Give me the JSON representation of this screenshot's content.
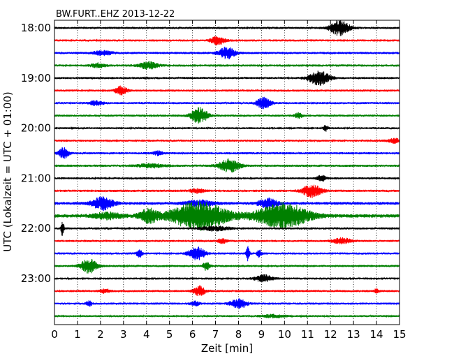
{
  "chart_data": {
    "type": "line",
    "title": "BW.FURT..EHZ 2013-12-22",
    "xlabel": "Zeit  [min]",
    "ylabel": "UTC (Lokalzeit = UTC + 01:00)",
    "xlim": [
      0,
      15
    ],
    "x_ticks": [
      "0",
      "1",
      "2",
      "3",
      "4",
      "5",
      "6",
      "7",
      "8",
      "9",
      "10",
      "11",
      "12",
      "13",
      "14",
      "15"
    ],
    "y_tick_labels": [
      "18:00",
      "19:00",
      "20:00",
      "21:00",
      "22:00",
      "23:00"
    ],
    "minutes_per_line": 15,
    "grid": "vertical dotted lines at each minute",
    "trace_colors": [
      "#000000",
      "#ff0000",
      "#0000ff",
      "#008000"
    ],
    "traces": [
      {
        "start": "18:00",
        "color": "#000000",
        "base_amp": 1.5,
        "events": [
          {
            "t": 12.4,
            "amp": 11,
            "width": 0.4
          }
        ]
      },
      {
        "start": "18:15",
        "color": "#ff0000",
        "base_amp": 1.5,
        "events": [
          {
            "t": 7.1,
            "amp": 6,
            "width": 0.3
          }
        ]
      },
      {
        "start": "18:30",
        "color": "#0000ff",
        "base_amp": 1.6,
        "events": [
          {
            "t": 7.5,
            "amp": 8,
            "width": 0.35
          },
          {
            "t": 2.1,
            "amp": 3,
            "width": 0.4
          }
        ]
      },
      {
        "start": "18:45",
        "color": "#008000",
        "base_amp": 1.6,
        "events": [
          {
            "t": 4.1,
            "amp": 5,
            "width": 0.4
          },
          {
            "t": 1.9,
            "amp": 3,
            "width": 0.3
          }
        ]
      },
      {
        "start": "19:00",
        "color": "#000000",
        "base_amp": 1.5,
        "events": [
          {
            "t": 11.5,
            "amp": 10,
            "width": 0.45
          }
        ]
      },
      {
        "start": "19:15",
        "color": "#ff0000",
        "base_amp": 1.5,
        "events": [
          {
            "t": 2.9,
            "amp": 6,
            "width": 0.25
          }
        ]
      },
      {
        "start": "19:30",
        "color": "#0000ff",
        "base_amp": 1.5,
        "events": [
          {
            "t": 9.1,
            "amp": 8,
            "width": 0.3
          },
          {
            "t": 1.8,
            "amp": 3,
            "width": 0.3
          }
        ]
      },
      {
        "start": "19:45",
        "color": "#008000",
        "base_amp": 1.5,
        "events": [
          {
            "t": 6.3,
            "amp": 11,
            "width": 0.35
          },
          {
            "t": 10.6,
            "amp": 4,
            "width": 0.15
          }
        ]
      },
      {
        "start": "20:00",
        "color": "#000000",
        "base_amp": 1.4,
        "events": [
          {
            "t": 11.8,
            "amp": 4,
            "width": 0.1
          }
        ]
      },
      {
        "start": "20:15",
        "color": "#ff0000",
        "base_amp": 1.4,
        "events": [
          {
            "t": 14.8,
            "amp": 3,
            "width": 0.3
          }
        ]
      },
      {
        "start": "20:30",
        "color": "#0000ff",
        "base_amp": 1.6,
        "events": [
          {
            "t": 0.4,
            "amp": 8,
            "width": 0.2
          },
          {
            "t": 4.5,
            "amp": 3,
            "width": 0.2
          }
        ]
      },
      {
        "start": "20:45",
        "color": "#008000",
        "base_amp": 1.6,
        "events": [
          {
            "t": 7.6,
            "amp": 9,
            "width": 0.45
          },
          {
            "t": 4.2,
            "amp": 2.5,
            "width": 0.6
          }
        ]
      },
      {
        "start": "21:00",
        "color": "#000000",
        "base_amp": 1.4,
        "events": [
          {
            "t": 11.6,
            "amp": 4,
            "width": 0.2
          }
        ]
      },
      {
        "start": "21:15",
        "color": "#ff0000",
        "base_amp": 1.6,
        "events": [
          {
            "t": 11.2,
            "amp": 9,
            "width": 0.4
          },
          {
            "t": 6.2,
            "amp": 3,
            "width": 0.3
          }
        ]
      },
      {
        "start": "21:30",
        "color": "#0000ff",
        "base_amp": 2,
        "events": [
          {
            "t": 2.1,
            "amp": 9,
            "width": 0.45
          },
          {
            "t": 9.3,
            "amp": 7,
            "width": 0.4
          },
          {
            "t": 6.3,
            "amp": 4,
            "width": 0.6
          }
        ]
      },
      {
        "start": "21:45",
        "color": "#008000",
        "base_amp": 2.5,
        "events": [
          {
            "t": 6.3,
            "amp": 20,
            "width": 1.2
          },
          {
            "t": 9.9,
            "amp": 18,
            "width": 1.1
          },
          {
            "t": 4.1,
            "amp": 9,
            "width": 0.4
          },
          {
            "t": 2.3,
            "amp": 4,
            "width": 0.6
          }
        ]
      },
      {
        "start": "22:00",
        "color": "#000000",
        "base_amp": 1.5,
        "events": [
          {
            "t": 0.35,
            "amp": 12,
            "width": 0.06
          },
          {
            "t": 7.0,
            "amp": 3,
            "width": 0.6
          }
        ]
      },
      {
        "start": "22:15",
        "color": "#ff0000",
        "base_amp": 1.5,
        "events": [
          {
            "t": 12.5,
            "amp": 4,
            "width": 0.4
          },
          {
            "t": 7.3,
            "amp": 3,
            "width": 0.2
          }
        ]
      },
      {
        "start": "22:30",
        "color": "#0000ff",
        "base_amp": 1.5,
        "events": [
          {
            "t": 6.2,
            "amp": 9,
            "width": 0.35
          },
          {
            "t": 8.4,
            "amp": 10,
            "width": 0.08
          },
          {
            "t": 3.7,
            "amp": 6,
            "width": 0.12
          },
          {
            "t": 8.9,
            "amp": 5,
            "width": 0.1
          }
        ]
      },
      {
        "start": "22:45",
        "color": "#008000",
        "base_amp": 1.5,
        "events": [
          {
            "t": 1.5,
            "amp": 10,
            "width": 0.35
          },
          {
            "t": 6.6,
            "amp": 6,
            "width": 0.15
          }
        ]
      },
      {
        "start": "23:00",
        "color": "#000000",
        "base_amp": 1.5,
        "events": [
          {
            "t": 9.1,
            "amp": 5,
            "width": 0.35
          }
        ]
      },
      {
        "start": "23:15",
        "color": "#ff0000",
        "base_amp": 1.5,
        "events": [
          {
            "t": 6.3,
            "amp": 7,
            "width": 0.25
          },
          {
            "t": 2.2,
            "amp": 3,
            "width": 0.2
          },
          {
            "t": 14.0,
            "amp": 3,
            "width": 0.1
          }
        ]
      },
      {
        "start": "23:30",
        "color": "#0000ff",
        "base_amp": 1.5,
        "events": [
          {
            "t": 8.0,
            "amp": 7,
            "width": 0.35
          },
          {
            "t": 1.5,
            "amp": 4,
            "width": 0.12
          },
          {
            "t": 6.1,
            "amp": 3,
            "width": 0.2
          }
        ]
      },
      {
        "start": "23:45",
        "color": "#008000",
        "base_amp": 1.4,
        "events": [
          {
            "t": 9.5,
            "amp": 2,
            "width": 0.5
          }
        ]
      }
    ]
  }
}
